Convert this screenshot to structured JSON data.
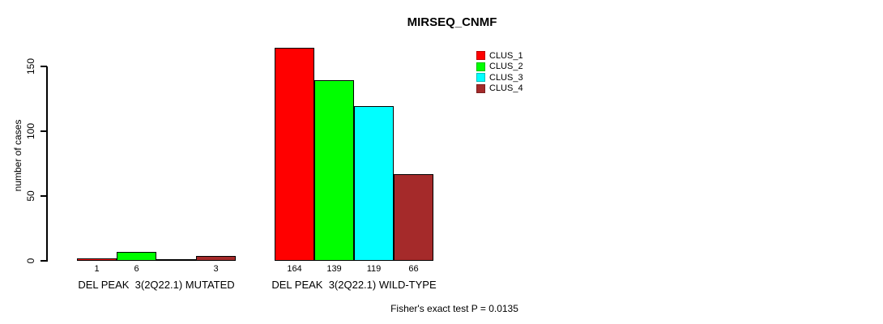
{
  "chart_data": {
    "type": "bar",
    "title": "MIRSEQ_CNMF",
    "ylabel": "number of cases",
    "xlabel": "",
    "categories": [
      "DEL PEAK  3(2Q22.1) MUTATED",
      "DEL PEAK  3(2Q22.1) WILD-TYPE"
    ],
    "series": [
      {
        "name": "CLUS_1",
        "color": "#FF0000",
        "values": [
          1,
          164
        ]
      },
      {
        "name": "CLUS_2",
        "color": "#00FF00",
        "values": [
          6,
          139
        ]
      },
      {
        "name": "CLUS_3",
        "color": "#00FFFF",
        "values": [
          0,
          119
        ]
      },
      {
        "name": "CLUS_4",
        "color": "#A52A2A",
        "values": [
          3,
          66
        ]
      }
    ],
    "bar_value_labels": [
      [
        "1",
        "6",
        "",
        "3"
      ],
      [
        "164",
        "139",
        "119",
        "66"
      ]
    ],
    "yticks": [
      0,
      50,
      100,
      150
    ],
    "ylim": [
      0,
      150
    ],
    "grid": false,
    "legend_position": "top-right",
    "annotation": "Fisher's exact test P = 0.0135"
  }
}
